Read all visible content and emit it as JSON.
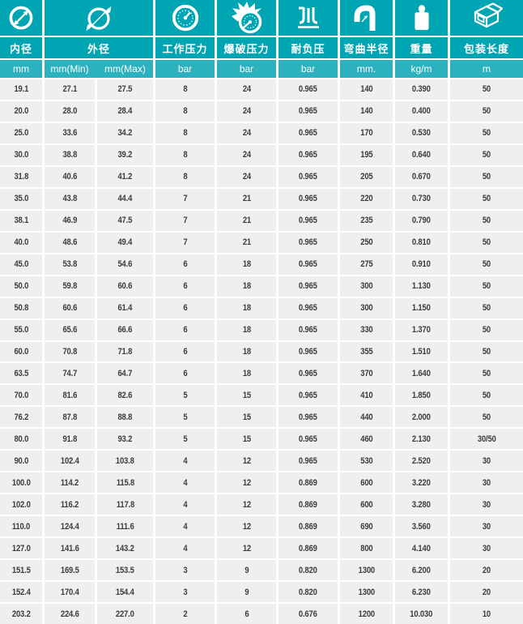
{
  "colors": {
    "header_teal": "#00a5b3",
    "units_teal": "#2cb2bf",
    "row_background": "#efefef",
    "data_text": "#3c3c3c",
    "gutter_white": "#ffffff"
  },
  "table": {
    "columns": [
      {
        "label": "内径",
        "unit": "mm",
        "icon": "inner-diameter-icon"
      },
      {
        "label": "外径",
        "units": [
          "mm(Min)",
          "mm(Max)"
        ],
        "icon": "outer-diameter-icon"
      },
      {
        "label": "工作压力",
        "unit": "bar",
        "icon": "pressure-gauge-icon"
      },
      {
        "label": "爆破压力",
        "unit": "bar",
        "icon": "burst-pressure-icon"
      },
      {
        "label": "耐负压",
        "unit": "bar",
        "icon": "vacuum-icon"
      },
      {
        "label": "弯曲半径",
        "unit": "mm.",
        "icon": "bend-radius-icon"
      },
      {
        "label": "重量",
        "unit": "kg/m",
        "icon": "weight-icon"
      },
      {
        "label": "包装长度",
        "unit": "m",
        "icon": "package-icon"
      }
    ],
    "rows": [
      [
        "19.1",
        "27.1",
        "27.5",
        "8",
        "24",
        "0.965",
        "140",
        "0.390",
        "50"
      ],
      [
        "20.0",
        "28.0",
        "28.4",
        "8",
        "24",
        "0.965",
        "140",
        "0.400",
        "50"
      ],
      [
        "25.0",
        "33.6",
        "34.2",
        "8",
        "24",
        "0.965",
        "170",
        "0.530",
        "50"
      ],
      [
        "30.0",
        "38.8",
        "39.2",
        "8",
        "24",
        "0.965",
        "195",
        "0.640",
        "50"
      ],
      [
        "31.8",
        "40.6",
        "41.2",
        "8",
        "24",
        "0.965",
        "205",
        "0.670",
        "50"
      ],
      [
        "35.0",
        "43.8",
        "44.4",
        "7",
        "21",
        "0.965",
        "220",
        "0.730",
        "50"
      ],
      [
        "38.1",
        "46.9",
        "47.5",
        "7",
        "21",
        "0.965",
        "235",
        "0.790",
        "50"
      ],
      [
        "40.0",
        "48.6",
        "49.4",
        "7",
        "21",
        "0.965",
        "250",
        "0.810",
        "50"
      ],
      [
        "45.0",
        "53.8",
        "54.6",
        "6",
        "18",
        "0.965",
        "275",
        "0.910",
        "50"
      ],
      [
        "50.0",
        "59.8",
        "60.6",
        "6",
        "18",
        "0.965",
        "300",
        "1.130",
        "50"
      ],
      [
        "50.8",
        "60.6",
        "61.4",
        "6",
        "18",
        "0.965",
        "300",
        "1.150",
        "50"
      ],
      [
        "55.0",
        "65.6",
        "66.6",
        "6",
        "18",
        "0.965",
        "330",
        "1.370",
        "50"
      ],
      [
        "60.0",
        "70.8",
        "71.8",
        "6",
        "18",
        "0.965",
        "355",
        "1.510",
        "50"
      ],
      [
        "63.5",
        "74.7",
        "64.7",
        "6",
        "18",
        "0.965",
        "370",
        "1.640",
        "50"
      ],
      [
        "70.0",
        "81.6",
        "82.6",
        "5",
        "15",
        "0.965",
        "410",
        "1.850",
        "50"
      ],
      [
        "76.2",
        "87.8",
        "88.8",
        "5",
        "15",
        "0.965",
        "440",
        "2.000",
        "50"
      ],
      [
        "80.0",
        "91.8",
        "93.2",
        "5",
        "15",
        "0.965",
        "460",
        "2.130",
        "30/50"
      ],
      [
        "90.0",
        "102.4",
        "103.8",
        "4",
        "12",
        "0.965",
        "530",
        "2.520",
        "30"
      ],
      [
        "100.0",
        "114.2",
        "115.8",
        "4",
        "12",
        "0.869",
        "600",
        "3.220",
        "30"
      ],
      [
        "102.0",
        "116.2",
        "117.8",
        "4",
        "12",
        "0.869",
        "600",
        "3.280",
        "30"
      ],
      [
        "110.0",
        "124.4",
        "111.6",
        "4",
        "12",
        "0.869",
        "690",
        "3.560",
        "30"
      ],
      [
        "127.0",
        "141.6",
        "143.2",
        "4",
        "12",
        "0.869",
        "800",
        "4.140",
        "30"
      ],
      [
        "151.5",
        "169.5",
        "153.5",
        "3",
        "9",
        "0.820",
        "1300",
        "6.200",
        "20"
      ],
      [
        "152.4",
        "170.4",
        "154.4",
        "3",
        "9",
        "0.820",
        "1300",
        "6.230",
        "20"
      ],
      [
        "203.2",
        "224.6",
        "227.0",
        "2",
        "6",
        "0.676",
        "1200",
        "10.030",
        "10"
      ]
    ]
  }
}
